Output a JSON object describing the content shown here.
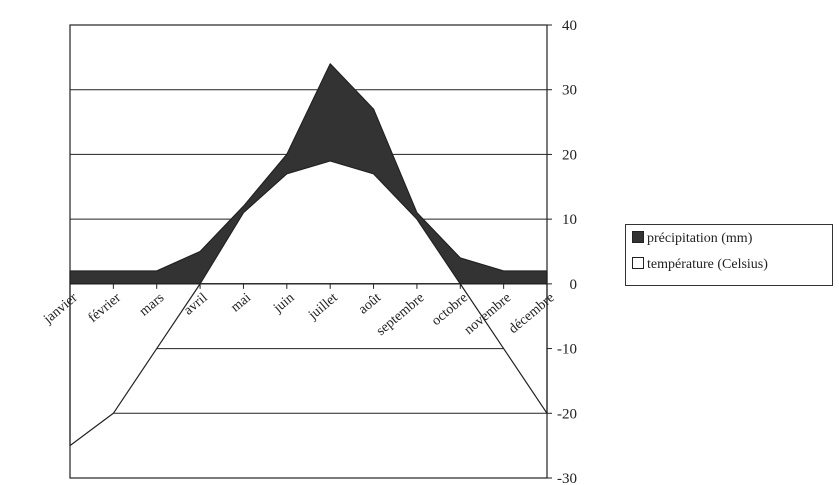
{
  "chart_data": {
    "type": "area",
    "categories": [
      "janvier",
      "février",
      "mars",
      "avril",
      "mai",
      "juin",
      "juillet",
      "août",
      "septembre",
      "octobre",
      "novembre",
      "décembre"
    ],
    "series": [
      {
        "name": "précipitation (mm)",
        "values": [
          2,
          2,
          2,
          5,
          12,
          20,
          34,
          27,
          11,
          4,
          2,
          2
        ],
        "color": "#333333"
      },
      {
        "name": "température (Celsius)",
        "values": [
          -25,
          -20,
          -10,
          0,
          11,
          17,
          19,
          17,
          10,
          0,
          -10,
          -20
        ],
        "color": "#ffffff"
      }
    ],
    "yticks": [
      40,
      30,
      20,
      10,
      0,
      -10,
      -20,
      -30
    ],
    "ylim": [
      -30,
      40
    ],
    "grid": true,
    "legend": "right"
  }
}
